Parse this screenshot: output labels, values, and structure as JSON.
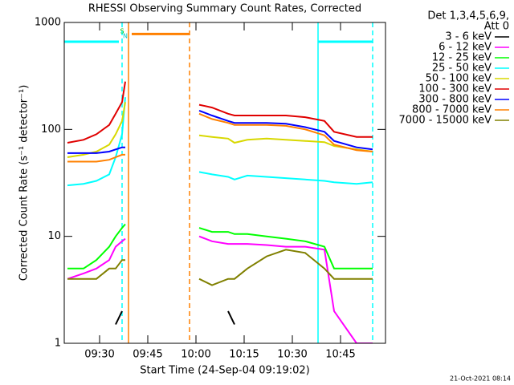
{
  "chart_data": {
    "type": "line",
    "title": "RHESSI Observing Summary Count Rates, Corrected",
    "xlabel": "Start Time (24-Sep-04 09:19:02)",
    "ylabel": "Corrected Count Rate (s⁻¹ detector⁻¹)",
    "ylog": true,
    "ylim": [
      1,
      1000
    ],
    "yticks": [
      1,
      10,
      100,
      1000
    ],
    "xlim": [
      "09:19",
      "10:59"
    ],
    "xticks": [
      "09:30",
      "09:45",
      "10:00",
      "10:15",
      "10:30",
      "10:45"
    ],
    "legend_header": [
      "Det 1,3,4,5,6,9,",
      "Att 0"
    ],
    "footer": "21-Oct-2021 08:14",
    "x": [
      "09:20",
      "09:25",
      "09:29",
      "09:33",
      "09:35",
      "09:37",
      "09:38",
      "09:50",
      "10:01",
      "10:05",
      "10:10",
      "10:12",
      "10:16",
      "10:22",
      "10:28",
      "10:34",
      "10:40",
      "10:43",
      "10:50",
      "10:55"
    ],
    "series": [
      {
        "name": "3 - 6 keV",
        "color": "#000000",
        "values": [
          null,
          null,
          null,
          null,
          1.5,
          2,
          null,
          null,
          null,
          null,
          2,
          1.5,
          null,
          null,
          null,
          null,
          null,
          null,
          null,
          null
        ]
      },
      {
        "name": "6 - 12 keV",
        "color": "#ff00ff",
        "values": [
          4,
          4.5,
          5,
          6,
          8,
          9,
          9.5,
          null,
          10,
          9,
          8.5,
          8.5,
          8.5,
          8.3,
          8,
          8,
          7.5,
          2,
          1,
          1
        ]
      },
      {
        "name": "12 - 25 keV",
        "color": "#00ff00",
        "values": [
          5,
          5,
          6,
          8,
          10,
          12,
          13,
          null,
          12,
          11,
          11,
          10.5,
          10.5,
          10,
          9.5,
          9,
          8,
          5,
          5,
          5
        ]
      },
      {
        "name": "25 - 50 keV",
        "color": "#00ffff",
        "values": [
          30,
          31,
          33,
          38,
          55,
          90,
          200,
          null,
          40,
          38,
          36,
          34,
          37,
          36,
          35,
          34,
          33,
          32,
          31,
          32
        ]
      },
      {
        "name": "50 - 100 keV",
        "color": "#d8d800",
        "values": [
          55,
          58,
          62,
          72,
          90,
          120,
          180,
          null,
          88,
          85,
          82,
          75,
          80,
          82,
          80,
          78,
          76,
          70,
          65,
          62
        ]
      },
      {
        "name": "100 - 300 keV",
        "color": "#e00000",
        "values": [
          75,
          80,
          90,
          110,
          140,
          180,
          280,
          null,
          170,
          160,
          140,
          135,
          135,
          135,
          135,
          130,
          120,
          95,
          85,
          85
        ]
      },
      {
        "name": "300 - 800 keV",
        "color": "#0000ff",
        "values": [
          60,
          60,
          60,
          62,
          65,
          68,
          68,
          null,
          150,
          135,
          120,
          115,
          115,
          115,
          113,
          105,
          95,
          78,
          68,
          65
        ]
      },
      {
        "name": "800 - 7000 keV",
        "color": "#ff8000",
        "values": [
          50,
          50,
          50,
          52,
          55,
          58,
          58,
          null,
          140,
          125,
          115,
          110,
          110,
          110,
          108,
          100,
          88,
          72,
          64,
          62
        ]
      },
      {
        "name": "7000 - 15000 keV",
        "color": "#808000",
        "values": [
          4,
          4,
          4,
          5,
          5,
          6,
          6,
          null,
          4,
          3.5,
          4,
          4,
          5,
          6.5,
          7.5,
          7,
          5,
          4,
          4,
          4
        ]
      }
    ],
    "state_bars": [
      {
        "color": "#00ffff",
        "start": "09:19",
        "end": "09:36",
        "level": 660
      },
      {
        "color": "#ff8000",
        "start": "09:40",
        "end": "09:58",
        "level": 780
      },
      {
        "color": "#00ffff",
        "start": "10:38",
        "end": "10:55",
        "level": 660
      }
    ],
    "markers": [
      {
        "time": "09:37",
        "color": "#00ffff",
        "dashed": true
      },
      {
        "time": "09:39",
        "color": "#ff8000",
        "dashed": false
      },
      {
        "time": "09:58",
        "color": "#ff8000",
        "dashed": true
      },
      {
        "time": "10:38",
        "color": "#00ffff",
        "dashed": false
      },
      {
        "time": "10:55",
        "color": "#00ffff",
        "dashed": true
      }
    ],
    "flags": [
      {
        "text": "S",
        "time": "09:37",
        "color": "#00c000"
      },
      {
        "text": "N",
        "time": "09:38",
        "color": "#00c8c8"
      }
    ]
  }
}
